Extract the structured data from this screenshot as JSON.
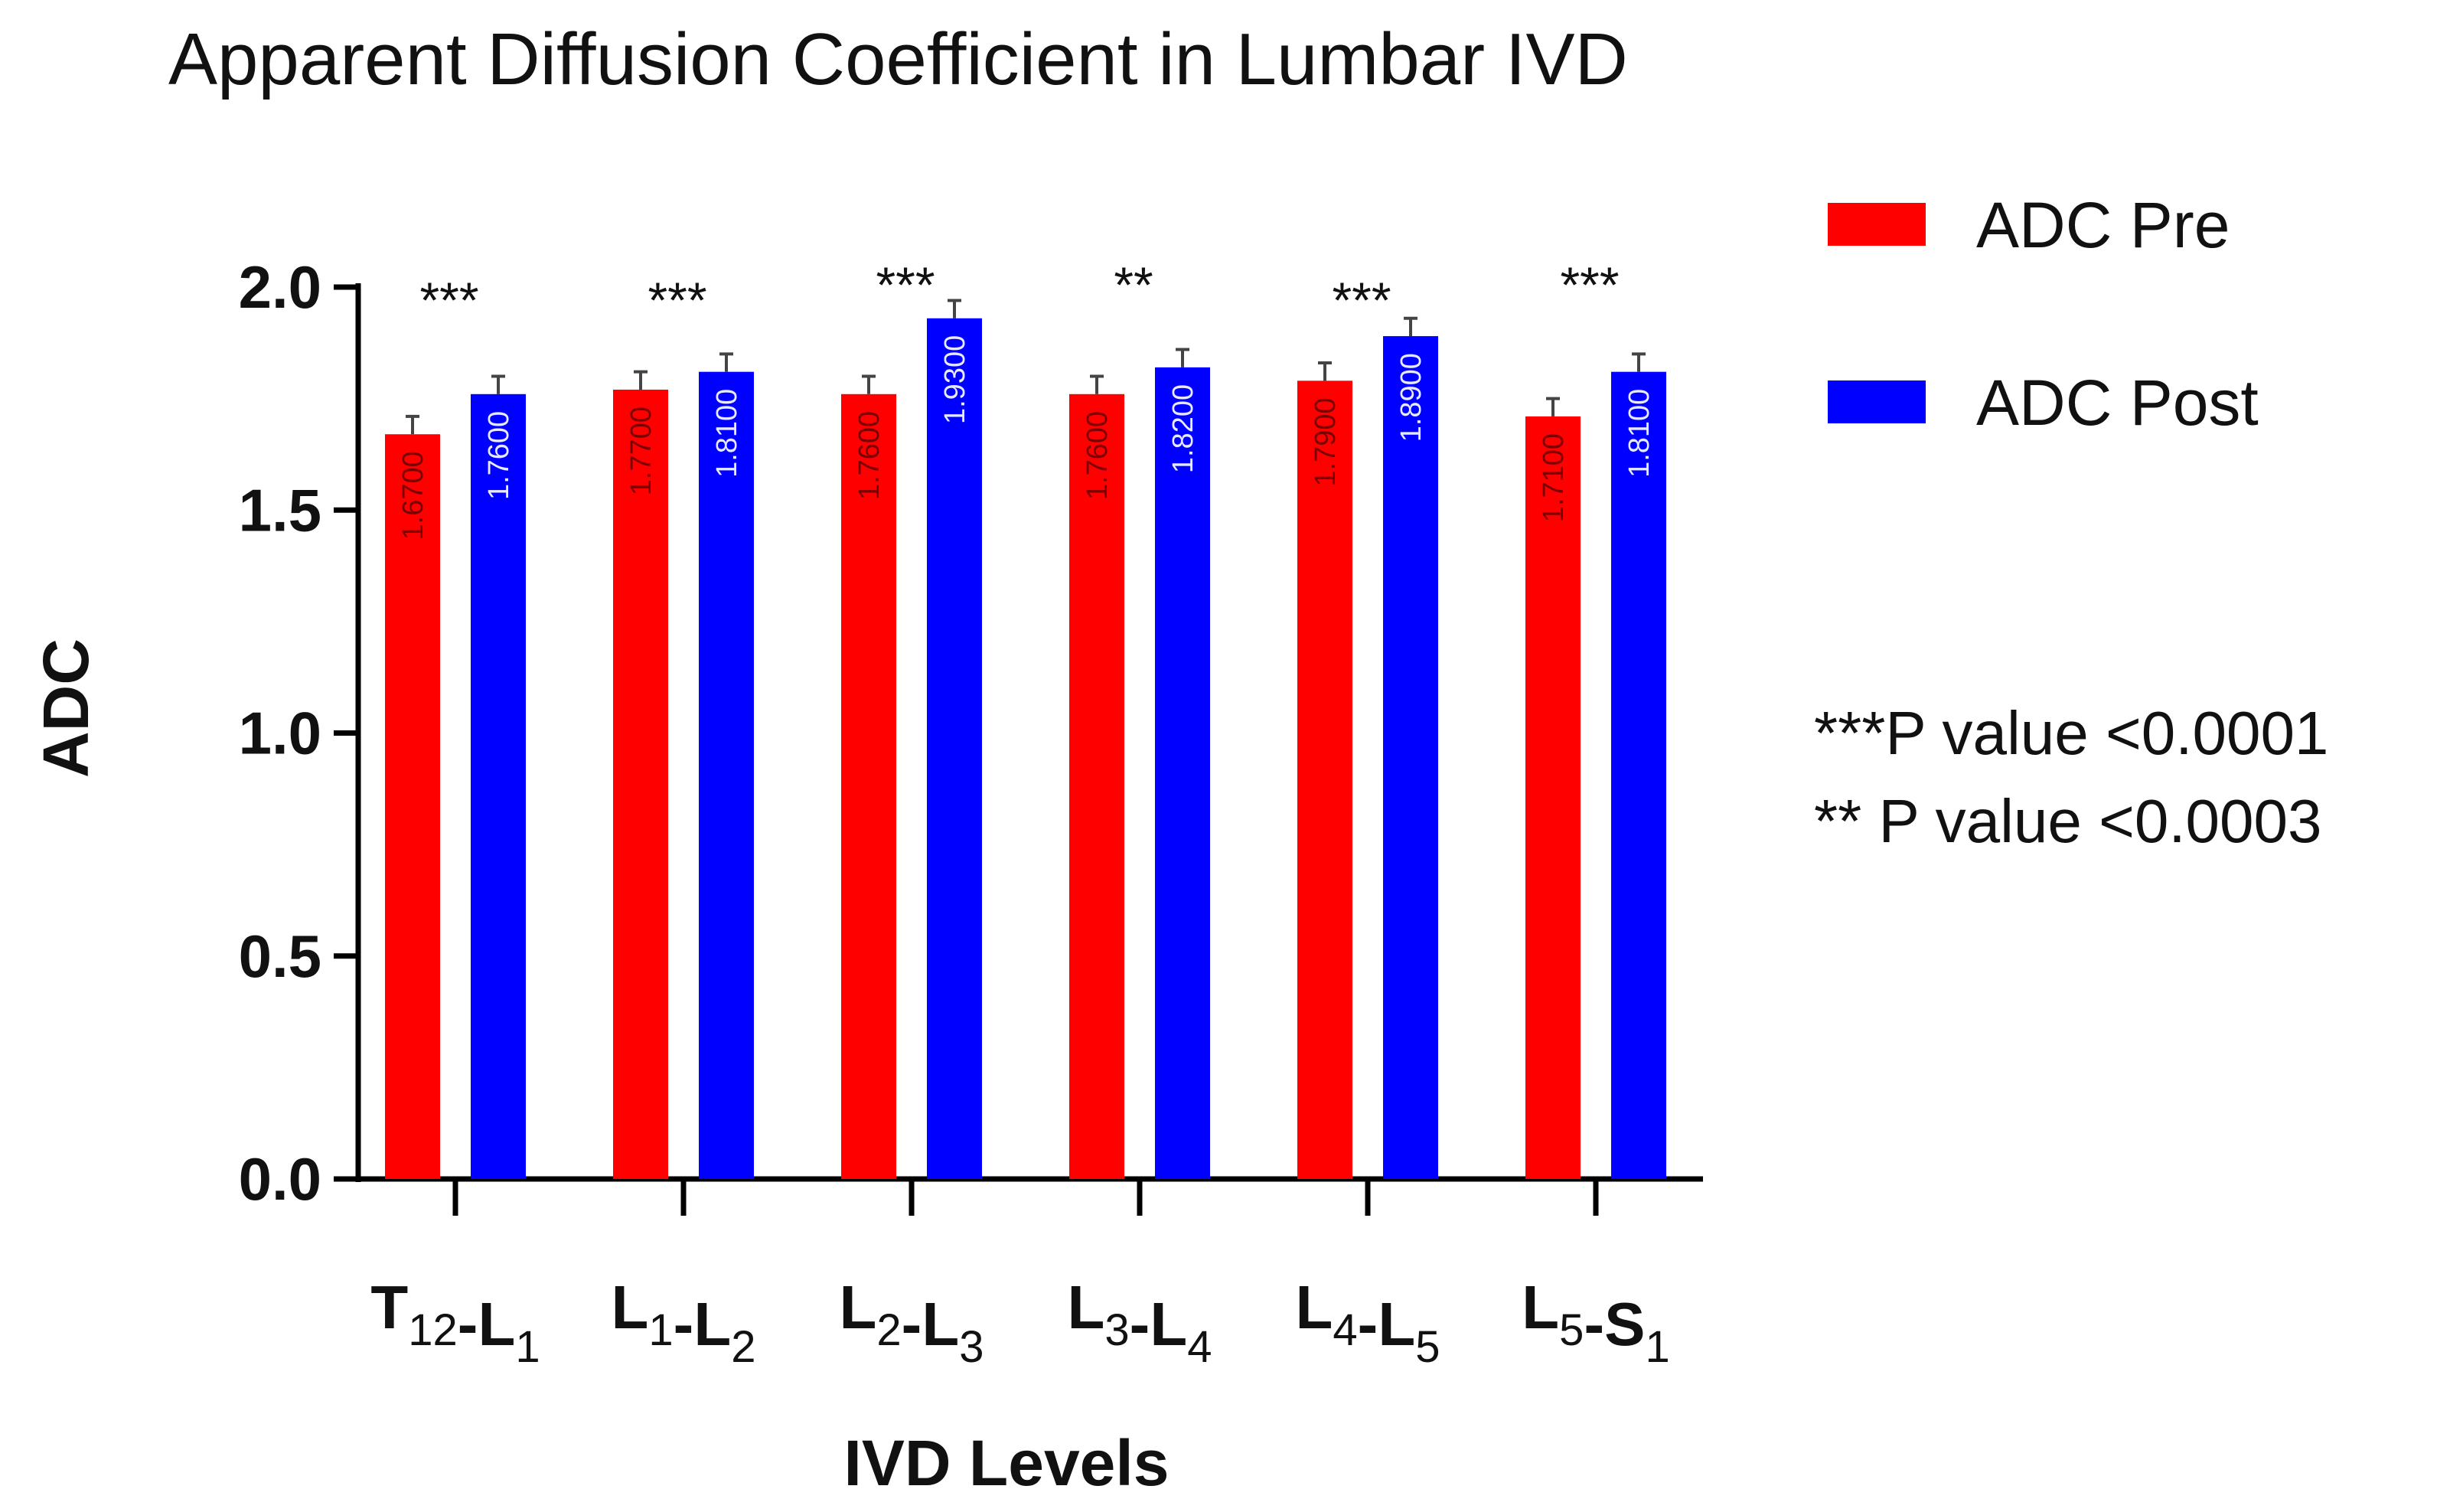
{
  "chart_data": {
    "type": "bar",
    "title": "Apparent Diffusion Coefficient in Lumbar IVD",
    "xlabel": "IVD Levels",
    "ylabel": "ADC",
    "ylim": [
      0,
      2.0
    ],
    "yticks": [
      "0.0",
      "0.5",
      "1.0",
      "1.5",
      "2.0"
    ],
    "categories": [
      {
        "label": "T12-L1",
        "parts": [
          [
            "T",
            "12"
          ],
          [
            "-L",
            "1"
          ]
        ]
      },
      {
        "label": "L1-L2",
        "parts": [
          [
            "L",
            "1"
          ],
          [
            "-L",
            "2"
          ]
        ]
      },
      {
        "label": "L2-L3",
        "parts": [
          [
            "L",
            "2"
          ],
          [
            "-L",
            "3"
          ]
        ]
      },
      {
        "label": "L3-L4",
        "parts": [
          [
            "L",
            "3"
          ],
          [
            "-L",
            "4"
          ]
        ]
      },
      {
        "label": "L4-L5",
        "parts": [
          [
            "L",
            "4"
          ],
          [
            "-L",
            "5"
          ]
        ]
      },
      {
        "label": "L5-S1",
        "parts": [
          [
            "L",
            "5"
          ],
          [
            "-S",
            "1"
          ]
        ]
      }
    ],
    "series": [
      {
        "name": "ADC Pre",
        "color": "#ff0000",
        "values": [
          1.67,
          1.77,
          1.76,
          1.76,
          1.79,
          1.71
        ],
        "value_labels": [
          "1.6700",
          "1.7700",
          "1.7600",
          "1.7600",
          "1.7900",
          "1.7100"
        ],
        "error": [
          0.04,
          0.04,
          0.04,
          0.04,
          0.04,
          0.04
        ]
      },
      {
        "name": "ADC Post",
        "color": "#0000ff",
        "values": [
          1.76,
          1.81,
          1.93,
          1.82,
          1.89,
          1.81
        ],
        "value_labels": [
          "1.7600",
          "1.8100",
          "1.9300",
          "1.8200",
          "1.8900",
          "1.8100"
        ],
        "error": [
          0.04,
          0.04,
          0.04,
          0.04,
          0.04,
          0.04
        ]
      }
    ],
    "significance": [
      "***",
      "***",
      "***",
      "**",
      "***",
      "***"
    ],
    "legend_position": "right",
    "annotations": [
      "***P value <0.0001",
      "** P value <0.0003"
    ]
  }
}
